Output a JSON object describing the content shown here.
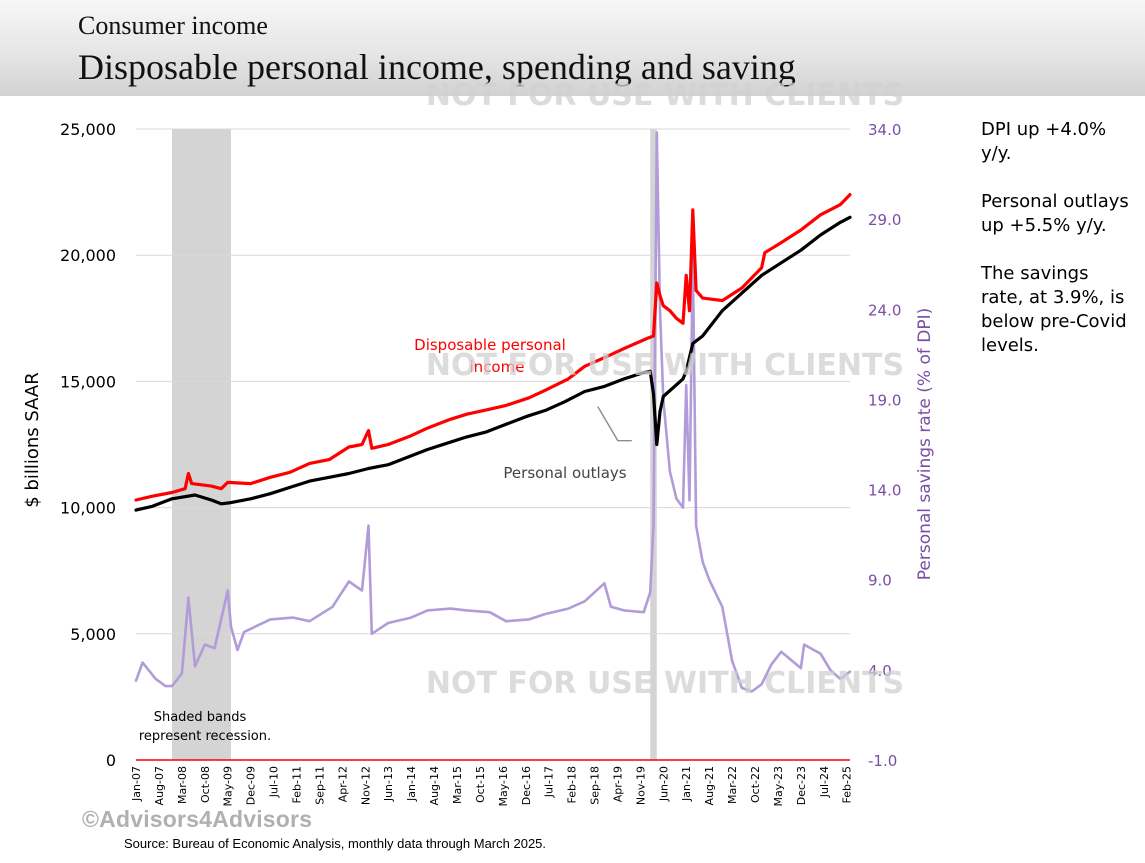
{
  "header": {
    "kicker": "Consumer income",
    "title": "Disposable personal income, spending and saving"
  },
  "watermark": "NOT FOR USE WITH CLIENTS",
  "copyright": "©Advisors4Advisors",
  "source": "Source: Bureau of Economic Analysis, monthly data through March 2025.",
  "notes": [
    "DPI up +4.0% y/y.",
    "Personal outlays up +5.5% y/y.",
    "The savings rate, at 3.9%, is below pre-Covid levels."
  ],
  "chart_data": {
    "type": "line",
    "ylabel_left": "$ billions SAAR",
    "ylabel_right": "Personal savings rate (% of DPI)",
    "ylim_left": [
      0,
      25000
    ],
    "yticks_left": [
      "0",
      "5,000",
      "10,000",
      "15,000",
      "20,000",
      "25,000"
    ],
    "ylim_right": [
      -1.0,
      34.0
    ],
    "yticks_right": [
      "-1.0",
      "4.0",
      "9.0",
      "14.0",
      "19.0",
      "24.0",
      "29.0",
      "34.0"
    ],
    "x_start": "Jan-07",
    "x_end": "Mar-25",
    "xticks": [
      "Jan-07",
      "Aug-07",
      "Mar-08",
      "Oct-08",
      "May-09",
      "Dec-09",
      "Jul-10",
      "Feb-11",
      "Sep-11",
      "Apr-12",
      "Nov-12",
      "Jun-13",
      "Jan-14",
      "Aug-14",
      "Mar-15",
      "Oct-15",
      "May-16",
      "Dec-16",
      "Jul-17",
      "Feb-18",
      "Sep-18",
      "Apr-19",
      "Nov-19",
      "Jun-20",
      "Jan-21",
      "Aug-21",
      "Mar-22",
      "Oct-22",
      "May-23",
      "Dec-23",
      "Jul-24",
      "Feb-25"
    ],
    "recessions": [
      {
        "start": "Dec-07",
        "end": "Jun-09"
      },
      {
        "start": "Feb-20",
        "end": "Apr-20"
      }
    ],
    "recession_note": [
      "Shaded bands",
      "represent recession."
    ],
    "colors": {
      "dpi": "#ff0000",
      "outlays": "#000000",
      "savings": "#b19cd9",
      "right_axis": "#7a4ea6"
    },
    "series": [
      {
        "name": "Disposable personal income",
        "label_lines": [
          "Disposable personal",
          "income"
        ],
        "axis": "left",
        "points": [
          [
            "Jan-07",
            10300
          ],
          [
            "Jun-07",
            10450
          ],
          [
            "Dec-07",
            10600
          ],
          [
            "Apr-08",
            10750
          ],
          [
            "May-08",
            11350
          ],
          [
            "Jun-08",
            10950
          ],
          [
            "Dec-08",
            10850
          ],
          [
            "Mar-09",
            10750
          ],
          [
            "May-09",
            11000
          ],
          [
            "Dec-09",
            10950
          ],
          [
            "Jun-10",
            11200
          ],
          [
            "Dec-10",
            11400
          ],
          [
            "Jun-11",
            11750
          ],
          [
            "Dec-11",
            11900
          ],
          [
            "Jun-12",
            12400
          ],
          [
            "Oct-12",
            12500
          ],
          [
            "Dec-12",
            13050
          ],
          [
            "Jan-13",
            12350
          ],
          [
            "Jun-13",
            12500
          ],
          [
            "Jan-14",
            12850
          ],
          [
            "Jun-14",
            13150
          ],
          [
            "Jan-15",
            13500
          ],
          [
            "Jun-15",
            13700
          ],
          [
            "Jan-16",
            13900
          ],
          [
            "Jun-16",
            14050
          ],
          [
            "Jan-17",
            14350
          ],
          [
            "Jun-17",
            14650
          ],
          [
            "Jan-18",
            15100
          ],
          [
            "Jun-18",
            15600
          ],
          [
            "Jan-19",
            16000
          ],
          [
            "Jun-19",
            16300
          ],
          [
            "Jan-20",
            16700
          ],
          [
            "Mar-20",
            16800
          ],
          [
            "Apr-20",
            18900
          ],
          [
            "May-20",
            18400
          ],
          [
            "Jun-20",
            18000
          ],
          [
            "Aug-20",
            17800
          ],
          [
            "Oct-20",
            17500
          ],
          [
            "Dec-20",
            17300
          ],
          [
            "Jan-21",
            19200
          ],
          [
            "Feb-21",
            17800
          ],
          [
            "Mar-21",
            21800
          ],
          [
            "Apr-21",
            18600
          ],
          [
            "Jun-21",
            18300
          ],
          [
            "Dec-21",
            18200
          ],
          [
            "Jun-22",
            18700
          ],
          [
            "Dec-22",
            19500
          ],
          [
            "Jan-23",
            20100
          ],
          [
            "Jun-23",
            20500
          ],
          [
            "Dec-23",
            21000
          ],
          [
            "Jun-24",
            21600
          ],
          [
            "Dec-24",
            22000
          ],
          [
            "Mar-25",
            22400
          ]
        ]
      },
      {
        "name": "Personal outlays",
        "axis": "left",
        "points": [
          [
            "Jan-07",
            9900
          ],
          [
            "Jun-07",
            10050
          ],
          [
            "Dec-07",
            10350
          ],
          [
            "Jul-08",
            10500
          ],
          [
            "Dec-08",
            10300
          ],
          [
            "Mar-09",
            10150
          ],
          [
            "Jun-09",
            10200
          ],
          [
            "Dec-09",
            10350
          ],
          [
            "Jun-10",
            10550
          ],
          [
            "Dec-10",
            10800
          ],
          [
            "Jun-11",
            11050
          ],
          [
            "Dec-11",
            11200
          ],
          [
            "Jun-12",
            11350
          ],
          [
            "Dec-12",
            11550
          ],
          [
            "Jun-13",
            11700
          ],
          [
            "Dec-13",
            12000
          ],
          [
            "Jun-14",
            12300
          ],
          [
            "Dec-14",
            12550
          ],
          [
            "Jun-15",
            12800
          ],
          [
            "Dec-15",
            13000
          ],
          [
            "Jun-16",
            13300
          ],
          [
            "Dec-16",
            13600
          ],
          [
            "Jun-17",
            13850
          ],
          [
            "Dec-17",
            14200
          ],
          [
            "Jun-18",
            14600
          ],
          [
            "Dec-18",
            14800
          ],
          [
            "Jun-19",
            15100
          ],
          [
            "Dec-19",
            15350
          ],
          [
            "Feb-20",
            15400
          ],
          [
            "Mar-20",
            14500
          ],
          [
            "Apr-20",
            12500
          ],
          [
            "May-20",
            13800
          ],
          [
            "Jun-20",
            14400
          ],
          [
            "Dec-20",
            15100
          ],
          [
            "Jan-21",
            15400
          ],
          [
            "Mar-21",
            16500
          ],
          [
            "Jun-21",
            16800
          ],
          [
            "Dec-21",
            17800
          ],
          [
            "Jun-22",
            18500
          ],
          [
            "Dec-22",
            19200
          ],
          [
            "Jun-23",
            19700
          ],
          [
            "Dec-23",
            20200
          ],
          [
            "Jun-24",
            20800
          ],
          [
            "Dec-24",
            21300
          ],
          [
            "Mar-25",
            21500
          ]
        ]
      },
      {
        "name": "Personal savings rate",
        "axis": "right",
        "points": [
          [
            "Jan-07",
            3.4
          ],
          [
            "Mar-07",
            4.4
          ],
          [
            "Jul-07",
            3.5
          ],
          [
            "Oct-07",
            3.1
          ],
          [
            "Dec-07",
            3.1
          ],
          [
            "Mar-08",
            3.8
          ],
          [
            "May-08",
            8.0
          ],
          [
            "Jul-08",
            4.2
          ],
          [
            "Oct-08",
            5.4
          ],
          [
            "Jan-09",
            5.2
          ],
          [
            "May-09",
            8.4
          ],
          [
            "Jun-09",
            6.4
          ],
          [
            "Aug-09",
            5.1
          ],
          [
            "Oct-09",
            6.1
          ],
          [
            "Jun-10",
            6.8
          ],
          [
            "Jan-11",
            6.9
          ],
          [
            "Jun-11",
            6.7
          ],
          [
            "Jan-12",
            7.5
          ],
          [
            "Jun-12",
            8.9
          ],
          [
            "Oct-12",
            8.4
          ],
          [
            "Dec-12",
            12.0
          ],
          [
            "Jan-13",
            6.0
          ],
          [
            "Jun-13",
            6.6
          ],
          [
            "Jan-14",
            6.9
          ],
          [
            "Jun-14",
            7.3
          ],
          [
            "Jan-15",
            7.4
          ],
          [
            "Jun-15",
            7.3
          ],
          [
            "Jan-16",
            7.2
          ],
          [
            "Jun-16",
            6.7
          ],
          [
            "Jan-17",
            6.8
          ],
          [
            "Jun-17",
            7.1
          ],
          [
            "Jan-18",
            7.4
          ],
          [
            "Jun-18",
            7.8
          ],
          [
            "Dec-18",
            8.8
          ],
          [
            "Feb-19",
            7.5
          ],
          [
            "Jun-19",
            7.3
          ],
          [
            "Dec-19",
            7.2
          ],
          [
            "Feb-20",
            8.3
          ],
          [
            "Mar-20",
            12.0
          ],
          [
            "Apr-20",
            33.8
          ],
          [
            "May-20",
            24.0
          ],
          [
            "Jun-20",
            19.0
          ],
          [
            "Aug-20",
            15.0
          ],
          [
            "Oct-20",
            13.5
          ],
          [
            "Dec-20",
            13.0
          ],
          [
            "Jan-21",
            19.8
          ],
          [
            "Feb-21",
            13.4
          ],
          [
            "Mar-21",
            27.0
          ],
          [
            "Apr-21",
            12.0
          ],
          [
            "Jun-21",
            10.0
          ],
          [
            "Aug-21",
            9.0
          ],
          [
            "Dec-21",
            7.5
          ],
          [
            "Mar-22",
            4.5
          ],
          [
            "Jun-22",
            3.0
          ],
          [
            "Sep-22",
            2.8
          ],
          [
            "Dec-22",
            3.2
          ],
          [
            "Mar-23",
            4.3
          ],
          [
            "Jun-23",
            5.0
          ],
          [
            "Dec-23",
            4.1
          ],
          [
            "Jan-24",
            5.4
          ],
          [
            "Jun-24",
            4.9
          ],
          [
            "Sep-24",
            4.0
          ],
          [
            "Dec-24",
            3.5
          ],
          [
            "Mar-25",
            3.9
          ]
        ]
      }
    ],
    "annotations": [
      {
        "text": "Personal outlays",
        "points_to": [
          "Oct-18",
          14000
        ]
      }
    ]
  }
}
